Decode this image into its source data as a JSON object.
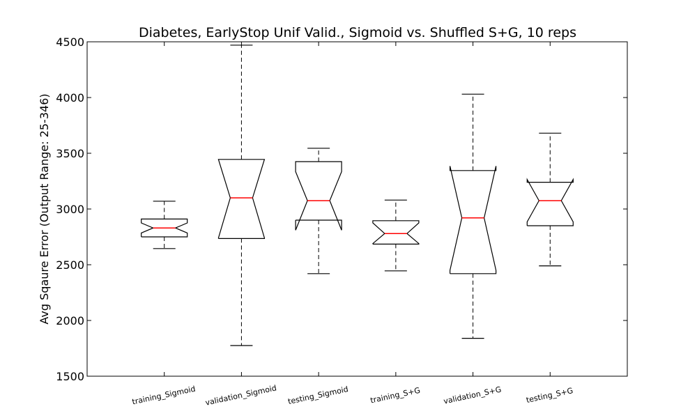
{
  "chart_data": {
    "type": "box",
    "title": "Diabetes, EarlyStop Unif Valid., Sigmoid vs. Shuffled S+G, 10 reps",
    "xlabel": "",
    "ylabel": "Avg Sqaure Error (Output Range: 25-346)",
    "ylim": [
      1500,
      4500
    ],
    "yticks": [
      1500,
      2000,
      2500,
      3000,
      3500,
      4000,
      4500
    ],
    "notched": true,
    "grid": false,
    "colors": {
      "box": "#000000",
      "median": "#ff0000",
      "whisker": "#000000"
    },
    "categories": [
      "training_Sigmoid",
      "validation_Sigmoid",
      "testing_Sigmoid",
      "training_S+G",
      "validation_S+G",
      "testing_S+G"
    ],
    "boxes": [
      {
        "whisker_low": 2645,
        "q1": 2750,
        "median": 2830,
        "q3": 2910,
        "whisker_high": 3070,
        "notch_low": 2785,
        "notch_high": 2875
      },
      {
        "whisker_low": 1775,
        "q1": 2735,
        "median": 3100,
        "q3": 3445,
        "whisker_high": 4470,
        "notch_low": 2740,
        "notch_high": 3445
      },
      {
        "whisker_low": 2420,
        "q1": 2900,
        "median": 3075,
        "q3": 3425,
        "whisker_high": 3545,
        "notch_low": 2810,
        "notch_high": 3335
      },
      {
        "whisker_low": 2445,
        "q1": 2685,
        "median": 2780,
        "q3": 2895,
        "whisker_high": 3080,
        "notch_low": 2690,
        "notch_high": 2875
      },
      {
        "whisker_low": 1840,
        "q1": 2420,
        "median": 2920,
        "q3": 3345,
        "whisker_high": 4030,
        "notch_low": 2450,
        "notch_high": 3385
      },
      {
        "whisker_low": 2490,
        "q1": 2850,
        "median": 3075,
        "q3": 3240,
        "whisker_high": 3680,
        "notch_low": 2885,
        "notch_high": 3265
      }
    ]
  }
}
